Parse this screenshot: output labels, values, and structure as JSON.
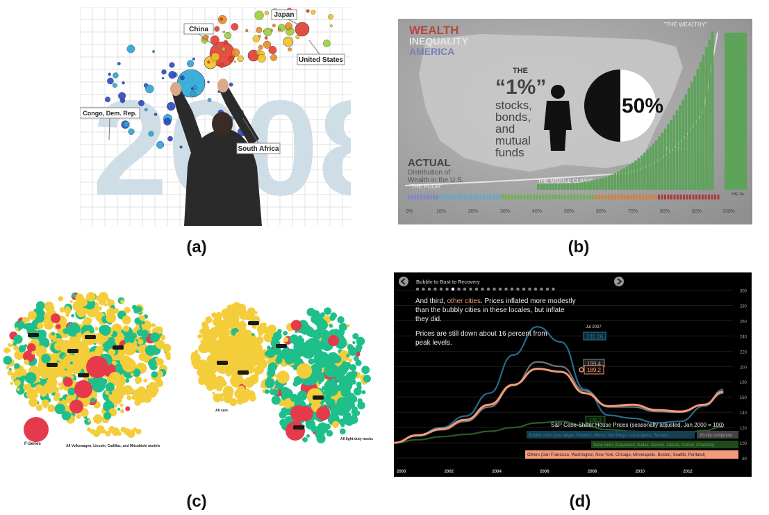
{
  "captions": {
    "a": "(a)",
    "b": "(b)",
    "c": "(c)",
    "d": "(d)"
  },
  "panel_a": {
    "year": "2008",
    "labels": {
      "china": "China",
      "japan": "Japan",
      "us": "United States",
      "congo": "Congo, Dem. Rep.",
      "sa": "South Africa"
    }
  },
  "panel_b": {
    "title_lines": [
      "WEALTH",
      "INEQUALITY",
      "AMERICA"
    ],
    "the": "THE",
    "one_pct": "“1%”",
    "stocks_lines": [
      "stocks,",
      "bonds,",
      "and",
      "mutual",
      "funds"
    ],
    "fifty": "50%",
    "wealthy": "\"THE WEALTHY\"",
    "rich": "\"THE RICH\"",
    "middle": "\"THE MIDDLE CLASS\"",
    "poor": "\"THE POOR\"",
    "actual": "ACTUAL",
    "distribution_lines": [
      "Distribution of",
      "Wealth in the U.S."
    ],
    "top_label": "THE 1%",
    "ticks": [
      "0%",
      "10%",
      "20%",
      "30%",
      "40%",
      "50%",
      "60%",
      "70%",
      "80%",
      "90%",
      "100%"
    ],
    "colors": {
      "poor": "#7f86c8",
      "low": "#63a9c4",
      "mid": "#6fb04a",
      "upper": "#d2813a",
      "rich": "#b0373c",
      "bars": "#5da35a"
    }
  },
  "panel_c": {
    "f_series": "F-Series",
    "all_vw": "All Volkswagen, Lincoln, Cadillac, and Mitsubishi models",
    "all_cars": "All cars",
    "all_trucks": "All light-duty trucks",
    "colors": {
      "yellow": "#f4cd3a",
      "green": "#1fbf8c",
      "red": "#e53a4b"
    }
  },
  "panel_d": {
    "header": "Bubble to Bust to Recovery",
    "text1_a": "And third, ",
    "text1_highlight": "other cities",
    "text1_b": ". Prices inflated more modestly",
    "text1_line2": "than the bubbly cities in these locales, but inflate",
    "text1_line3": "they did.",
    "text2_line1": "Prices are still down about 16 percent from",
    "text2_line2": "peak levels.",
    "jul_label": "Jul 2007",
    "value_bubbly": "231.06",
    "value_composite": "199.4",
    "value_others": "189.2",
    "value_sane": "135.2",
    "legend_title": "S&P Case-Shiller House Prices (seasonally adjusted, Jan 2000 = 100)",
    "legend_bubbly": "Bubbly cities (Las Vegas, Phoenix, Miami, San Diego, Los Angeles, Tampa)",
    "legend_composite": "20-city composite",
    "legend_sane": "Sane cities (Cleveland, Dallas, Denver, Atlanta, Detroit, Charlotte)",
    "legend_others": "Others (San Francisco, Washington, New York, Chicago, Minneapolis, Boston, Seattle, Portland)"
  },
  "chart_data": {
    "type": "line",
    "title": "S&P Case-Shiller House Prices (seasonally adjusted, Jan 2000 = 100)",
    "x": [
      2000,
      2001,
      2002,
      2003,
      2004,
      2005,
      2006,
      2007,
      2008,
      2009,
      2010,
      2011,
      2012,
      2013,
      2013.8
    ],
    "xticks": [
      "2000",
      "2002",
      "2004",
      "2006",
      "2008",
      "2010",
      "2012"
    ],
    "yticks": [
      80,
      100,
      120,
      140,
      160,
      180,
      200,
      220,
      240,
      260,
      280,
      300
    ],
    "ylim": [
      70,
      305
    ],
    "xlim": [
      2000,
      2014.2
    ],
    "series": [
      {
        "name": "Bubbly cities (Las Vegas, Phoenix, Miami, San Diego, Los Angeles, Tampa)",
        "color": "#2e7fa6",
        "values": [
          100,
          110,
          120,
          135,
          165,
          215,
          252,
          232,
          170,
          136,
          132,
          126,
          128,
          148,
          170
        ]
      },
      {
        "name": "20-city composite",
        "color": "#8a8a8a",
        "values": [
          100,
          109,
          117,
          128,
          147,
          175,
          206,
          200,
          168,
          147,
          147,
          141,
          140,
          150,
          165
        ]
      },
      {
        "name": "Sane cities (Cleveland, Dallas, Denver, Atlanta, Detroit, Charlotte)",
        "color": "#2f6e2a",
        "values": [
          100,
          104,
          108,
          111,
          115,
          120,
          126,
          128,
          122,
          117,
          115,
          112,
          111,
          116,
          121
        ]
      },
      {
        "name": "Others (San Francisco, Washington, New York, Chicago, Minneapolis, Boston, Seattle, Portland)",
        "color": "#f39a7a",
        "values": [
          100,
          110,
          118,
          130,
          150,
          176,
          197,
          193,
          165,
          148,
          150,
          143,
          141,
          150,
          167
        ]
      }
    ]
  }
}
